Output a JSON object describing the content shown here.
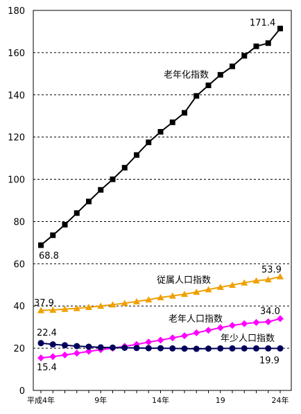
{
  "chart_data": {
    "type": "line",
    "title": "",
    "xlabel": "",
    "ylabel": "",
    "ylim": [
      0,
      180
    ],
    "yticks": [
      0,
      20,
      40,
      60,
      80,
      100,
      120,
      140,
      160,
      180
    ],
    "grid": "horizontal-dashed",
    "x_count": 21,
    "x_tick_labels": [
      {
        "index": 0,
        "label": "平成4年"
      },
      {
        "index": 5,
        "label": "9年"
      },
      {
        "index": 10,
        "label": "14年"
      },
      {
        "index": 15,
        "label": "19"
      },
      {
        "index": 20,
        "label": "24年"
      }
    ],
    "series": [
      {
        "name": "老年化指数",
        "marker": "square",
        "color": "#000000",
        "values": [
          68.8,
          73.5,
          78.5,
          84,
          89.5,
          95,
          100,
          105.5,
          111.5,
          117.5,
          122.5,
          127,
          131.5,
          139.5,
          144.5,
          149.5,
          153.5,
          158.5,
          163,
          164.5,
          171.4
        ],
        "start_label": "68.8",
        "end_label": "171.4"
      },
      {
        "name": "従属人口指数",
        "marker": "triangle",
        "color": "#f0a000",
        "values": [
          37.9,
          38.1,
          38.5,
          38.9,
          39.4,
          40,
          40.6,
          41.3,
          42.1,
          43,
          44,
          44.8,
          45.6,
          46.6,
          47.8,
          48.9,
          49.9,
          51,
          52,
          52.5,
          53.9
        ],
        "start_label": "37.9",
        "end_label": "53.9"
      },
      {
        "name": "老年人口指数",
        "marker": "diamond",
        "color": "#ff00ff",
        "values": [
          15.4,
          16,
          16.8,
          17.6,
          18.5,
          19.3,
          20,
          20.9,
          21.8,
          22.9,
          23.8,
          24.9,
          25.9,
          27.3,
          28.5,
          29.7,
          30.8,
          31.6,
          32.2,
          32.5,
          34.0
        ],
        "start_label": "15.4",
        "end_label": "34.0"
      },
      {
        "name": "年少人口指数",
        "marker": "circle",
        "color": "#00005a",
        "values": [
          22.4,
          21.8,
          21.4,
          21,
          20.7,
          20.4,
          20.3,
          20.2,
          20.1,
          20,
          20,
          19.9,
          19.8,
          19.7,
          19.8,
          19.9,
          19.9,
          19.9,
          19.9,
          19.9,
          19.9
        ],
        "start_label": "22.4",
        "end_label": "19.9"
      }
    ]
  }
}
